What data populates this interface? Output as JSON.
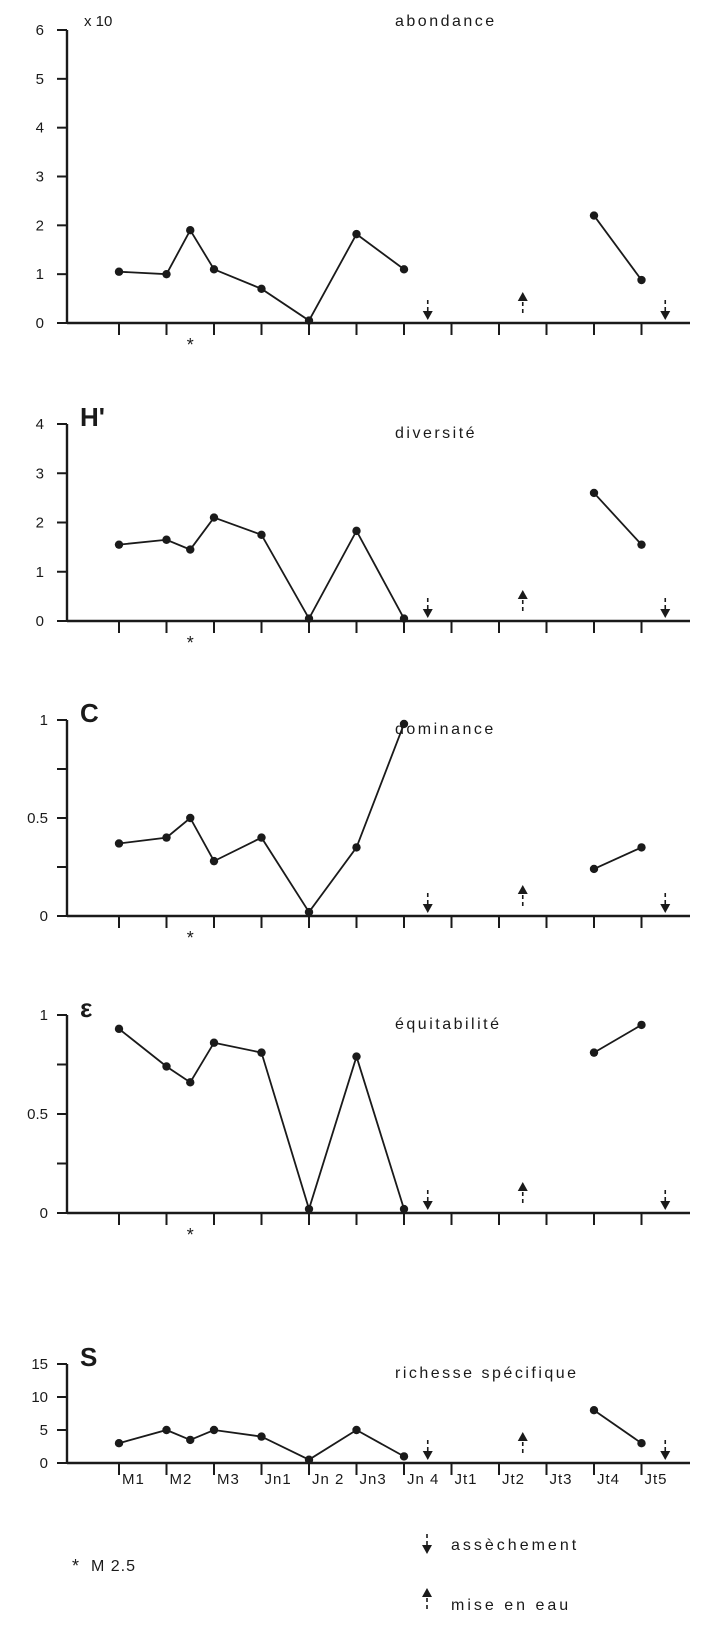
{
  "chart_data": [
    {
      "type": "line",
      "title": "abondance",
      "unit_label": "x 10",
      "ylim": [
        0,
        6
      ],
      "y_ticks": [
        0,
        1,
        2,
        3,
        4,
        5,
        6
      ],
      "y_tick_labels": [
        "0",
        "1",
        "2",
        "3",
        "4",
        "5",
        "6"
      ],
      "segments": [
        [
          [
            0,
            1.05
          ],
          [
            1,
            1.0
          ],
          [
            1.5,
            1.9
          ],
          [
            2,
            1.1
          ],
          [
            3,
            0.7
          ],
          [
            4,
            0.05
          ],
          [
            5,
            1.82
          ],
          [
            6,
            1.1
          ]
        ],
        [
          [
            10,
            2.2
          ],
          [
            11,
            0.88
          ]
        ]
      ],
      "marker_x": 1.5
    },
    {
      "type": "line",
      "title": "diversité",
      "symbol": "H'",
      "ylim": [
        0,
        4
      ],
      "y_ticks": [
        0,
        1,
        2,
        3,
        4
      ],
      "y_tick_labels": [
        "0",
        "1",
        "2",
        "3",
        "4"
      ],
      "segments": [
        [
          [
            0,
            1.55
          ],
          [
            1,
            1.65
          ],
          [
            1.5,
            1.45
          ],
          [
            2,
            2.1
          ],
          [
            3,
            1.75
          ],
          [
            4,
            0.05
          ],
          [
            5,
            1.83
          ],
          [
            6,
            0.05
          ]
        ],
        [
          [
            10,
            2.6
          ],
          [
            11,
            1.55
          ]
        ]
      ],
      "marker_x": 1.5
    },
    {
      "type": "line",
      "title": "dominance",
      "symbol": "C",
      "ylim": [
        0,
        1
      ],
      "y_ticks": [
        0,
        0.25,
        0.5,
        0.75,
        1
      ],
      "y_tick_labels": [
        "0",
        "",
        "0.5",
        "",
        "1"
      ],
      "segments": [
        [
          [
            0,
            0.37
          ],
          [
            1,
            0.4
          ],
          [
            1.5,
            0.5
          ],
          [
            2,
            0.28
          ],
          [
            3,
            0.4
          ],
          [
            4,
            0.02
          ],
          [
            5,
            0.35
          ],
          [
            6,
            0.98
          ]
        ],
        [
          [
            10,
            0.24
          ],
          [
            11,
            0.35
          ]
        ]
      ],
      "marker_x": 1.5
    },
    {
      "type": "line",
      "title": "équitabilité",
      "symbol": "ε",
      "ylim": [
        0,
        1
      ],
      "y_ticks": [
        0,
        0.25,
        0.5,
        0.75,
        1
      ],
      "y_tick_labels": [
        "0",
        "",
        "0.5",
        "",
        "1"
      ],
      "segments": [
        [
          [
            0,
            0.93
          ],
          [
            1,
            0.74
          ],
          [
            1.5,
            0.66
          ],
          [
            2,
            0.86
          ],
          [
            3,
            0.81
          ],
          [
            4,
            0.02
          ],
          [
            5,
            0.79
          ],
          [
            6,
            0.02
          ]
        ],
        [
          [
            10,
            0.81
          ],
          [
            11,
            0.95
          ]
        ]
      ],
      "marker_x": 1.5
    },
    {
      "type": "line",
      "title": "richesse spécifique",
      "symbol": "S",
      "ylim": [
        0,
        15
      ],
      "y_ticks": [
        0,
        5,
        10,
        15
      ],
      "y_tick_labels": [
        "0",
        "5",
        "10",
        "15"
      ],
      "segments": [
        [
          [
            0,
            3
          ],
          [
            1,
            5
          ],
          [
            1.5,
            3.5
          ],
          [
            2,
            5
          ],
          [
            3,
            4
          ],
          [
            4,
            0.5
          ],
          [
            5,
            5
          ],
          [
            6,
            1
          ]
        ],
        [
          [
            10,
            8
          ],
          [
            11,
            3
          ]
        ]
      ],
      "categories": [
        "M1",
        "M2",
        "M3",
        "Jn1",
        "Jn 2",
        "Jn3",
        "Jn 4",
        "Jt1",
        "Jt2",
        "Jt3",
        "Jt4",
        "Jt5"
      ]
    }
  ],
  "events": {
    "drying": [
      6.5,
      11.5
    ],
    "flooding": [
      8.5
    ]
  },
  "legend": {
    "drying_label": "assèchement",
    "flooding_label": "mise en eau",
    "marker_label": "M 2.5",
    "marker_symbol": "*"
  },
  "colors": {
    "ink": "#1a1a1a",
    "background": "#ffffff"
  }
}
